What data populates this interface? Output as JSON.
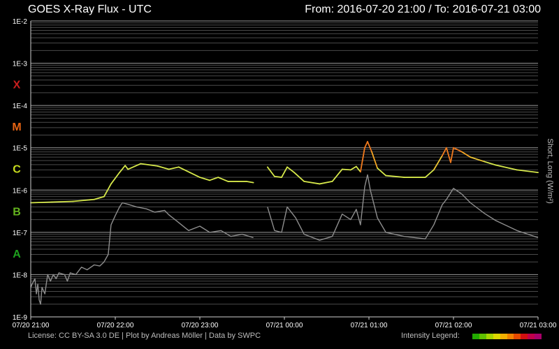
{
  "header": {
    "title": "GOES X-Ray Flux - UTC",
    "range": "From: 2016-07-20 21:00  /  To: 2016-07-21 03:00"
  },
  "footer": {
    "license": "License: CC BY-SA 3.0 DE | Plot by Andreas Möller | Data by SWPC",
    "legend_label": "Intensity Legend:",
    "legend_colors": [
      "#22aa00",
      "#5fc000",
      "#a6d400",
      "#ddd800",
      "#f2b000",
      "#f08000",
      "#e64a00",
      "#d21010",
      "#c0004a",
      "#a8006a"
    ]
  },
  "chart_data": {
    "type": "line",
    "title": "GOES X-Ray Flux - UTC",
    "ylabel": "Short, Long (W/m²)",
    "yscale": "log",
    "ylim": [
      1e-09,
      0.01
    ],
    "xlim": [
      "2016-07-20 21:00",
      "2016-07-21 03:00"
    ],
    "grid": true,
    "yticks": [
      "1E-2",
      "1E-3",
      "1E-4",
      "1E-5",
      "1E-6",
      "1E-7",
      "1E-8",
      "1E-9"
    ],
    "xticks": [
      "07/20 21:00",
      "07/20 22:00",
      "07/20 23:00",
      "07/21 00:00",
      "07/21 01:00",
      "07/21 02:00",
      "07/21 03:00"
    ],
    "flare_classes": [
      {
        "label": "X",
        "flux": 0.00032,
        "color": "#c81e1e"
      },
      {
        "label": "M",
        "flux": 3.2e-05,
        "color": "#e66414"
      },
      {
        "label": "C",
        "flux": 3.2e-06,
        "color": "#c8dc1e"
      },
      {
        "label": "B",
        "flux": 3.2e-07,
        "color": "#64b41e"
      },
      {
        "label": "A",
        "flux": 3.2e-08,
        "color": "#1ea01e"
      }
    ],
    "series": [
      {
        "name": "Long",
        "color": "#d6e84a",
        "segments": [
          [
            [
              "2016-07-20 21:00",
              5e-07
            ],
            [
              "2016-07-20 21:15",
              5.2e-07
            ],
            [
              "2016-07-20 21:30",
              5.4e-07
            ],
            [
              "2016-07-20 21:45",
              6e-07
            ],
            [
              "2016-07-20 21:52",
              7e-07
            ],
            [
              "2016-07-20 21:57",
              1.4e-06
            ],
            [
              "2016-07-20 22:03",
              2.6e-06
            ],
            [
              "2016-07-20 22:07",
              3.8e-06
            ],
            [
              "2016-07-20 22:09",
              3.1e-06
            ],
            [
              "2016-07-20 22:18",
              4.2e-06
            ],
            [
              "2016-07-20 22:30",
              3.7e-06
            ],
            [
              "2016-07-20 22:38",
              3.1e-06
            ],
            [
              "2016-07-20 22:45",
              3.5e-06
            ],
            [
              "2016-07-20 22:53",
              2.6e-06
            ],
            [
              "2016-07-20 23:00",
              2e-06
            ],
            [
              "2016-07-20 23:07",
              1.7e-06
            ],
            [
              "2016-07-20 23:13",
              2e-06
            ],
            [
              "2016-07-20 23:20",
              1.6e-06
            ],
            [
              "2016-07-20 23:27",
              1.6e-06
            ],
            [
              "2016-07-20 23:33",
              1.6e-06
            ],
            [
              "2016-07-20 23:38",
              1.5e-06
            ]
          ],
          [
            [
              "2016-07-20 23:48",
              3.5e-06
            ],
            [
              "2016-07-20 23:53",
              2.1e-06
            ],
            [
              "2016-07-20 23:58",
              2e-06
            ],
            [
              "2016-07-21 00:02",
              3.5e-06
            ],
            [
              "2016-07-21 00:07",
              2.6e-06
            ],
            [
              "2016-07-21 00:14",
              1.6e-06
            ],
            [
              "2016-07-21 00:25",
              1.4e-06
            ],
            [
              "2016-07-21 00:34",
              1.6e-06
            ],
            [
              "2016-07-21 00:41",
              3.1e-06
            ],
            [
              "2016-07-21 00:47",
              3e-06
            ],
            [
              "2016-07-21 00:51",
              3.6e-06
            ],
            [
              "2016-07-21 00:54",
              2.7e-06
            ],
            [
              "2016-07-21 00:57",
              1e-05
            ],
            [
              "2016-07-21 00:59",
              1.4e-05
            ],
            [
              "2016-07-21 01:02",
              8e-06
            ],
            [
              "2016-07-21 01:06",
              3.3e-06
            ],
            [
              "2016-07-21 01:12",
              2.2e-06
            ],
            [
              "2016-07-21 01:25",
              2e-06
            ],
            [
              "2016-07-21 01:40",
              2e-06
            ],
            [
              "2016-07-21 01:46",
              3e-06
            ],
            [
              "2016-07-21 01:52",
              6.5e-06
            ],
            [
              "2016-07-21 01:55",
              1e-05
            ],
            [
              "2016-07-21 01:58",
              4.5e-06
            ],
            [
              "2016-07-21 02:00",
              1e-05
            ],
            [
              "2016-07-21 02:06",
              8e-06
            ],
            [
              "2016-07-21 02:12",
              6e-06
            ],
            [
              "2016-07-21 02:22",
              4.7e-06
            ],
            [
              "2016-07-21 02:30",
              3.9e-06
            ],
            [
              "2016-07-21 02:45",
              3e-06
            ],
            [
              "2016-07-21 03:00",
              2.6e-06
            ]
          ]
        ]
      },
      {
        "name": "Short",
        "color": "#8e8e8e",
        "segments": [
          [
            [
              "2016-07-20 21:00",
              5e-09
            ],
            [
              "2016-07-20 21:01",
              6e-09
            ],
            [
              "2016-07-20 21:03",
              8e-09
            ],
            [
              "2016-07-20 21:04",
              3.5e-09
            ],
            [
              "2016-07-20 21:05",
              6e-09
            ],
            [
              "2016-07-20 21:06",
              2.5e-09
            ],
            [
              "2016-07-20 21:07",
              2e-09
            ],
            [
              "2016-07-20 21:08",
              5e-09
            ],
            [
              "2016-07-20 21:10",
              3.5e-09
            ],
            [
              "2016-07-20 21:12",
              1e-08
            ],
            [
              "2016-07-20 21:14",
              7e-09
            ],
            [
              "2016-07-20 21:16",
              1e-08
            ],
            [
              "2016-07-20 21:18",
              8e-09
            ],
            [
              "2016-07-20 21:20",
              1.1e-08
            ],
            [
              "2016-07-20 21:24",
              1e-08
            ],
            [
              "2016-07-20 21:26",
              7e-09
            ],
            [
              "2016-07-20 21:28",
              1.1e-08
            ],
            [
              "2016-07-20 21:32",
              1e-08
            ],
            [
              "2016-07-20 21:36",
              1.5e-08
            ],
            [
              "2016-07-20 21:40",
              1.3e-08
            ],
            [
              "2016-07-20 21:45",
              1.7e-08
            ],
            [
              "2016-07-20 21:49",
              1.6e-08
            ],
            [
              "2016-07-20 21:52",
              2e-08
            ],
            [
              "2016-07-20 21:55",
              3e-08
            ],
            [
              "2016-07-20 21:57",
              1.5e-07
            ],
            [
              "2016-07-20 22:00",
              2.5e-07
            ],
            [
              "2016-07-20 22:03",
              4e-07
            ],
            [
              "2016-07-20 22:05",
              5e-07
            ],
            [
              "2016-07-20 22:09",
              4.6e-07
            ],
            [
              "2016-07-20 22:15",
              4e-07
            ],
            [
              "2016-07-20 22:22",
              3.6e-07
            ],
            [
              "2016-07-20 22:28",
              3e-07
            ],
            [
              "2016-07-20 22:35",
              3.3e-07
            ],
            [
              "2016-07-20 22:38",
              2.6e-07
            ],
            [
              "2016-07-20 22:45",
              1.7e-07
            ],
            [
              "2016-07-20 22:52",
              1.1e-07
            ],
            [
              "2016-07-20 23:00",
              1.4e-07
            ],
            [
              "2016-07-20 23:07",
              1e-07
            ],
            [
              "2016-07-20 23:15",
              1.1e-07
            ],
            [
              "2016-07-20 23:22",
              8e-08
            ],
            [
              "2016-07-20 23:30",
              9e-08
            ],
            [
              "2016-07-20 23:38",
              7.5e-08
            ]
          ],
          [
            [
              "2016-07-20 23:48",
              4e-07
            ],
            [
              "2016-07-20 23:53",
              1.1e-07
            ],
            [
              "2016-07-20 23:58",
              1e-07
            ],
            [
              "2016-07-21 00:02",
              4e-07
            ],
            [
              "2016-07-21 00:08",
              2.2e-07
            ],
            [
              "2016-07-21 00:14",
              9e-08
            ],
            [
              "2016-07-21 00:25",
              6.5e-08
            ],
            [
              "2016-07-21 00:34",
              8e-08
            ],
            [
              "2016-07-21 00:41",
              2.7e-07
            ],
            [
              "2016-07-21 00:47",
              2e-07
            ],
            [
              "2016-07-21 00:51",
              3.5e-07
            ],
            [
              "2016-07-21 00:54",
              1.5e-07
            ],
            [
              "2016-07-21 00:57",
              1.2e-06
            ],
            [
              "2016-07-21 00:59",
              2.3e-06
            ],
            [
              "2016-07-21 01:01",
              1e-06
            ],
            [
              "2016-07-21 01:06",
              2.2e-07
            ],
            [
              "2016-07-21 01:12",
              1e-07
            ],
            [
              "2016-07-21 01:25",
              8e-08
            ],
            [
              "2016-07-21 01:40",
              7e-08
            ],
            [
              "2016-07-21 01:46",
              1.5e-07
            ],
            [
              "2016-07-21 01:52",
              4.5e-07
            ],
            [
              "2016-07-21 01:55",
              6e-07
            ],
            [
              "2016-07-21 02:00",
              1.1e-06
            ],
            [
              "2016-07-21 02:06",
              8e-07
            ],
            [
              "2016-07-21 02:12",
              5e-07
            ],
            [
              "2016-07-21 02:22",
              2.8e-07
            ],
            [
              "2016-07-21 02:30",
              1.9e-07
            ],
            [
              "2016-07-21 02:45",
              1.1e-07
            ],
            [
              "2016-07-21 03:00",
              7.5e-08
            ]
          ]
        ]
      }
    ]
  }
}
